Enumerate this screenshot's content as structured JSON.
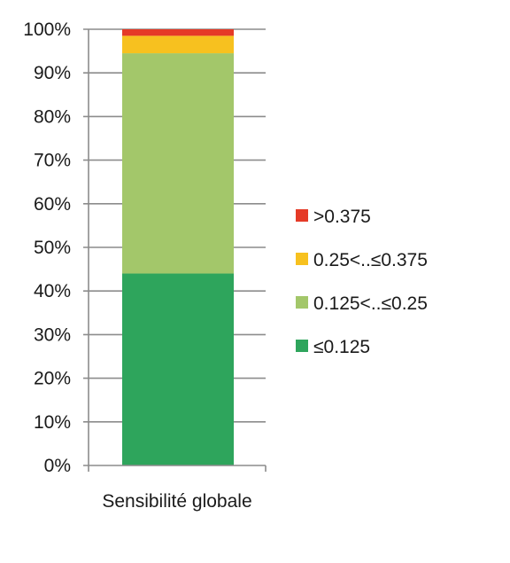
{
  "chart_data": {
    "type": "bar",
    "stacked": true,
    "percent_axis": true,
    "categories": [
      "Sensibilité globale"
    ],
    "series": [
      {
        "name": "≤0.125",
        "values": [
          44
        ],
        "color": "#2ea55c"
      },
      {
        "name": "0.125<..≤0.25",
        "values": [
          50.5
        ],
        "color": "#a3c76a"
      },
      {
        "name": "0.25<..≤0.375",
        "values": [
          4
        ],
        "color": "#f7c11f"
      },
      {
        "name": ">0.375",
        "values": [
          1.5
        ],
        "color": "#e53a27"
      }
    ],
    "ylim": [
      0,
      100
    ],
    "yticks": [
      "0%",
      "10%",
      "20%",
      "30%",
      "40%",
      "50%",
      "60%",
      "70%",
      "80%",
      "90%",
      "100%"
    ],
    "legend_order": [
      ">0.375",
      "0.25<..≤0.375",
      "0.125<..≤0.25",
      "≤0.125"
    ],
    "legend_position": "right",
    "grid": true
  }
}
